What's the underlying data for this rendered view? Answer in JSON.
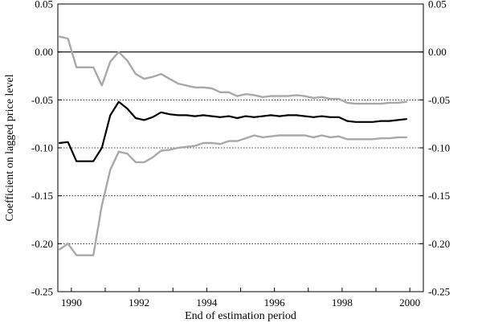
{
  "chart_data": {
    "type": "line",
    "title": "",
    "xlabel": "End of estimation period",
    "ylabel": "Coefficient on lagged price level",
    "xlim": [
      1989.6,
      2000.4
    ],
    "ylim": [
      -0.25,
      0.05
    ],
    "x_ticks": [
      1990,
      1992,
      1994,
      1996,
      1998,
      2000
    ],
    "x_tick_labels": [
      "1990",
      "1992",
      "1994",
      "1996",
      "1998",
      "2000"
    ],
    "y_ticks": [
      0.05,
      0.0,
      -0.05,
      -0.1,
      -0.15,
      -0.2,
      -0.25
    ],
    "y_tick_labels": [
      "0.05",
      "0.00",
      "-0.05",
      "-0.10",
      "-0.15",
      "-0.20",
      "-0.25"
    ],
    "dual_y_axis": true,
    "grid": "horizontal dotted",
    "series": [
      {
        "role": "upper-band",
        "color": "#a8a8a8",
        "x": [
          1989.65,
          1989.9,
          1990.15,
          1990.4,
          1990.65,
          1990.9,
          1991.15,
          1991.4,
          1991.65,
          1991.9,
          1992.15,
          1992.4,
          1992.65,
          1992.9,
          1993.15,
          1993.4,
          1993.65,
          1993.9,
          1994.15,
          1994.4,
          1994.65,
          1994.9,
          1995.15,
          1995.4,
          1995.65,
          1995.9,
          1996.15,
          1996.4,
          1996.65,
          1996.9,
          1997.15,
          1997.4,
          1997.65,
          1997.9,
          1998.15,
          1998.4,
          1998.65,
          1998.9,
          1999.15,
          1999.4,
          1999.65,
          1999.9
        ],
        "values": [
          0.016,
          0.014,
          -0.016,
          -0.016,
          -0.016,
          -0.035,
          -0.01,
          0.0,
          -0.009,
          -0.023,
          -0.028,
          -0.026,
          -0.023,
          -0.028,
          -0.033,
          -0.035,
          -0.037,
          -0.037,
          -0.038,
          -0.042,
          -0.042,
          -0.046,
          -0.044,
          -0.045,
          -0.047,
          -0.046,
          -0.046,
          -0.046,
          -0.045,
          -0.046,
          -0.048,
          -0.047,
          -0.049,
          -0.049,
          -0.053,
          -0.054,
          -0.054,
          -0.054,
          -0.054,
          -0.053,
          -0.053,
          -0.052
        ]
      },
      {
        "role": "estimate",
        "color": "#000000",
        "x": [
          1989.65,
          1989.9,
          1990.15,
          1990.4,
          1990.65,
          1990.9,
          1991.15,
          1991.4,
          1991.65,
          1991.9,
          1992.15,
          1992.4,
          1992.65,
          1992.9,
          1993.15,
          1993.4,
          1993.65,
          1993.9,
          1994.15,
          1994.4,
          1994.65,
          1994.9,
          1995.15,
          1995.4,
          1995.65,
          1995.9,
          1996.15,
          1996.4,
          1996.65,
          1996.9,
          1997.15,
          1997.4,
          1997.65,
          1997.9,
          1998.15,
          1998.4,
          1998.65,
          1998.9,
          1999.15,
          1999.4,
          1999.65,
          1999.9
        ],
        "values": [
          -0.095,
          -0.094,
          -0.114,
          -0.114,
          -0.114,
          -0.1,
          -0.066,
          -0.052,
          -0.059,
          -0.069,
          -0.071,
          -0.068,
          -0.063,
          -0.065,
          -0.066,
          -0.066,
          -0.067,
          -0.066,
          -0.067,
          -0.068,
          -0.067,
          -0.069,
          -0.067,
          -0.068,
          -0.067,
          -0.066,
          -0.067,
          -0.066,
          -0.066,
          -0.067,
          -0.068,
          -0.067,
          -0.068,
          -0.068,
          -0.072,
          -0.073,
          -0.073,
          -0.073,
          -0.072,
          -0.072,
          -0.071,
          -0.07
        ]
      },
      {
        "role": "lower-band",
        "color": "#a8a8a8",
        "x": [
          1989.65,
          1989.9,
          1990.15,
          1990.4,
          1990.65,
          1990.9,
          1991.15,
          1991.4,
          1991.65,
          1991.9,
          1992.15,
          1992.4,
          1992.65,
          1992.9,
          1993.15,
          1993.4,
          1993.65,
          1993.9,
          1994.15,
          1994.4,
          1994.65,
          1994.9,
          1995.15,
          1995.4,
          1995.65,
          1995.9,
          1996.15,
          1996.4,
          1996.65,
          1996.9,
          1997.15,
          1997.4,
          1997.65,
          1997.9,
          1998.15,
          1998.4,
          1998.65,
          1998.9,
          1999.15,
          1999.4,
          1999.65,
          1999.9
        ],
        "values": [
          -0.206,
          -0.2,
          -0.212,
          -0.212,
          -0.212,
          -0.16,
          -0.123,
          -0.104,
          -0.106,
          -0.115,
          -0.115,
          -0.11,
          -0.103,
          -0.102,
          -0.1,
          -0.099,
          -0.098,
          -0.095,
          -0.095,
          -0.096,
          -0.093,
          -0.093,
          -0.09,
          -0.087,
          -0.089,
          -0.088,
          -0.087,
          -0.087,
          -0.087,
          -0.087,
          -0.089,
          -0.087,
          -0.089,
          -0.088,
          -0.091,
          -0.091,
          -0.091,
          -0.091,
          -0.09,
          -0.09,
          -0.089,
          -0.089
        ]
      }
    ]
  }
}
